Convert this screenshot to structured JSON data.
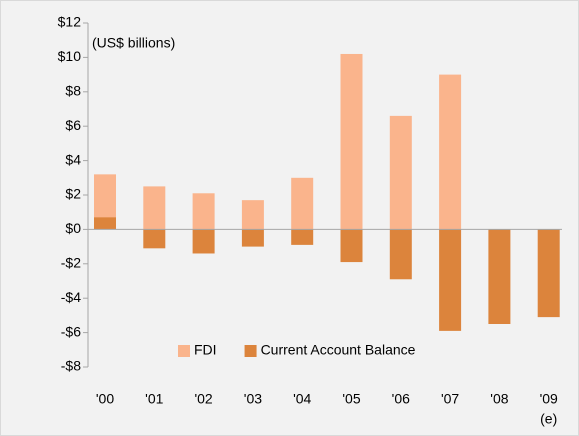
{
  "chart_data": {
    "type": "bar",
    "annotation": "(US$ billions)",
    "categories": [
      "'00",
      "'01",
      "'02",
      "'03",
      "'04",
      "'05",
      "'06",
      "'07",
      "'08",
      "'09"
    ],
    "category_note": "(e)",
    "series": [
      {
        "name": "FDI",
        "color": "#fab48c",
        "values": [
          3.2,
          2.5,
          2.1,
          1.7,
          3.0,
          10.2,
          6.6,
          9.0,
          null,
          null
        ]
      },
      {
        "name": "Current Account Balance",
        "color": "#dc843c",
        "values": [
          0.7,
          -1.1,
          -1.4,
          -1.0,
          -0.9,
          -1.9,
          -2.9,
          -5.9,
          -5.5,
          -5.1
        ]
      }
    ],
    "ylim": [
      -8,
      12
    ],
    "yticks": [
      {
        "value": -8,
        "label": "-$8"
      },
      {
        "value": -6,
        "label": "-$6"
      },
      {
        "value": -4,
        "label": "-$4"
      },
      {
        "value": -2,
        "label": "-$2"
      },
      {
        "value": 0,
        "label": "$0"
      },
      {
        "value": 2,
        "label": "$2"
      },
      {
        "value": 4,
        "label": "$4"
      },
      {
        "value": 6,
        "label": "$6"
      },
      {
        "value": 8,
        "label": "$8"
      },
      {
        "value": 10,
        "label": "$10"
      },
      {
        "value": 12,
        "label": "$12"
      }
    ],
    "grid": false,
    "legend": "bottom"
  }
}
